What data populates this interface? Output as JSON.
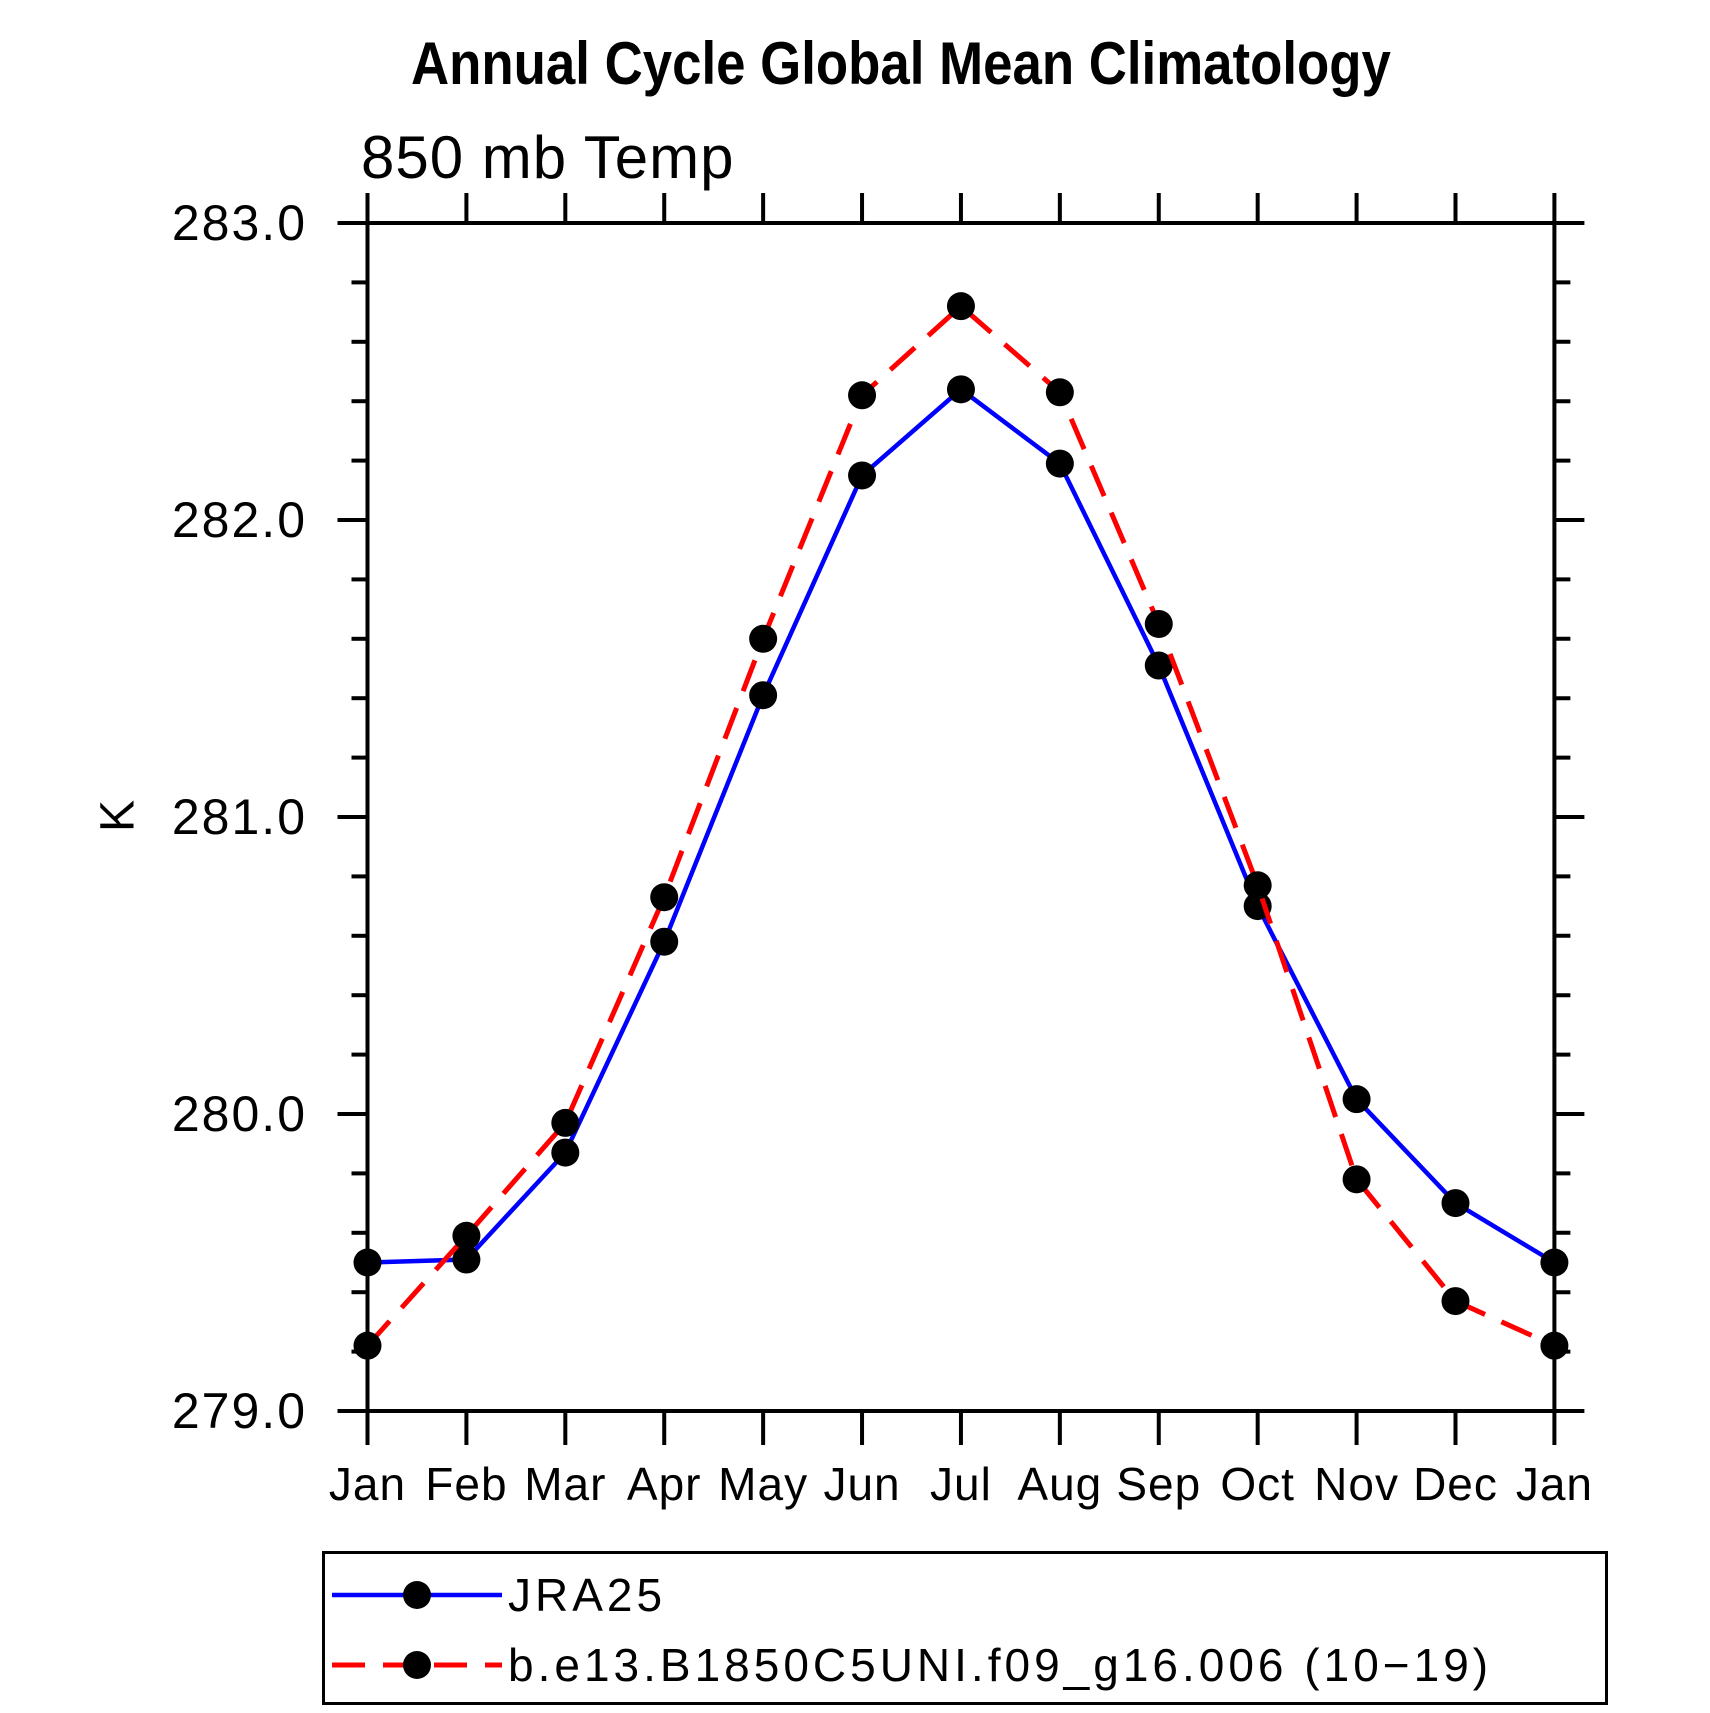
{
  "title": "Annual Cycle Global Mean Climatology",
  "subtitle": "850 mb Temp",
  "chart_data": {
    "type": "line",
    "x_categories": [
      "Jan",
      "Feb",
      "Mar",
      "Apr",
      "May",
      "Jun",
      "Jul",
      "Aug",
      "Sep",
      "Oct",
      "Nov",
      "Dec",
      "Jan"
    ],
    "ylabel": "K",
    "ylim": [
      279.0,
      283.0
    ],
    "y_tick_labels": [
      "279.0",
      "280.0",
      "281.0",
      "282.0",
      "283.0"
    ],
    "y_major_tick_step": 1.0,
    "y_minor_tick_step": 0.2,
    "grid": false,
    "axis_color": "#000000",
    "legend_position": "bottom-left",
    "series": [
      {
        "name": "JRA25",
        "line_color": "#0000ff",
        "line_style": "solid",
        "marker": "filled-circle",
        "marker_color": "#000000",
        "values": [
          279.5,
          279.51,
          279.87,
          280.58,
          281.41,
          282.15,
          282.44,
          282.19,
          281.51,
          280.7,
          280.05,
          279.7,
          279.5
        ]
      },
      {
        "name": "b.e13.B1850C5UNI.f09_g16.006 (10−19)",
        "line_color": "#ff0000",
        "line_style": "dashed",
        "marker": "filled-circle",
        "marker_color": "#000000",
        "values": [
          279.22,
          279.59,
          279.97,
          280.73,
          281.6,
          282.42,
          282.72,
          282.43,
          281.65,
          280.77,
          279.78,
          279.37,
          279.22
        ]
      }
    ]
  }
}
